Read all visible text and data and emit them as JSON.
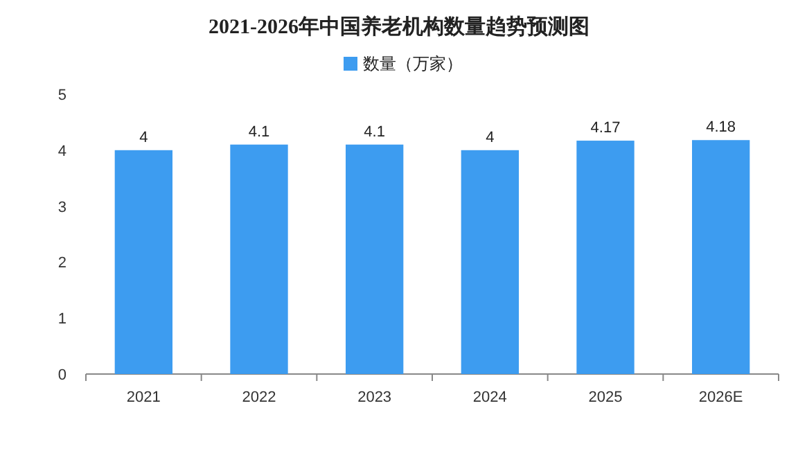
{
  "chart_data": {
    "type": "bar",
    "title": "2021-2026年中国养老机构数量趋势预测图",
    "categories": [
      "2021",
      "2022",
      "2023",
      "2024",
      "2025",
      "2026E"
    ],
    "series": [
      {
        "name": "数量（万家）",
        "color": "#3d9cf0",
        "values": [
          4,
          4.1,
          4.1,
          4,
          4.17,
          4.18
        ]
      }
    ],
    "ylim": [
      0,
      5
    ],
    "yticks": [
      0,
      1,
      2,
      3,
      4,
      5
    ],
    "data_labels": true,
    "legend": "top",
    "grid": false
  }
}
